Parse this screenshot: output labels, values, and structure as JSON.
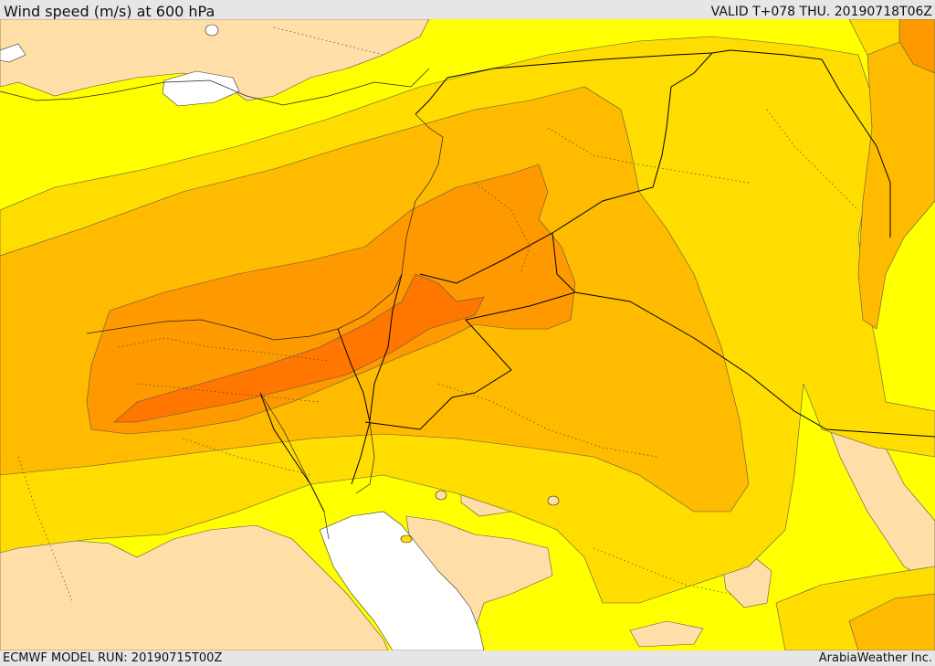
{
  "header": {
    "title": "Wind speed (m/s) at 600 hPa",
    "valid": "VALID T+078 THU. 20190718T06Z"
  },
  "footer": {
    "model_run": "ECMWF MODEL RUN: 20190715T00Z",
    "credit": "ArabiaWeather Inc."
  },
  "colors": {
    "band_calm": "#ffdea8",
    "band_light": "#ffff00",
    "band_moderate": "#ffdd00",
    "band_fresh": "#ffbb00",
    "band_strong": "#ff9900",
    "band_very_strong": "#ff7700",
    "no_data": "#ffffff",
    "borders": "#000000"
  }
}
